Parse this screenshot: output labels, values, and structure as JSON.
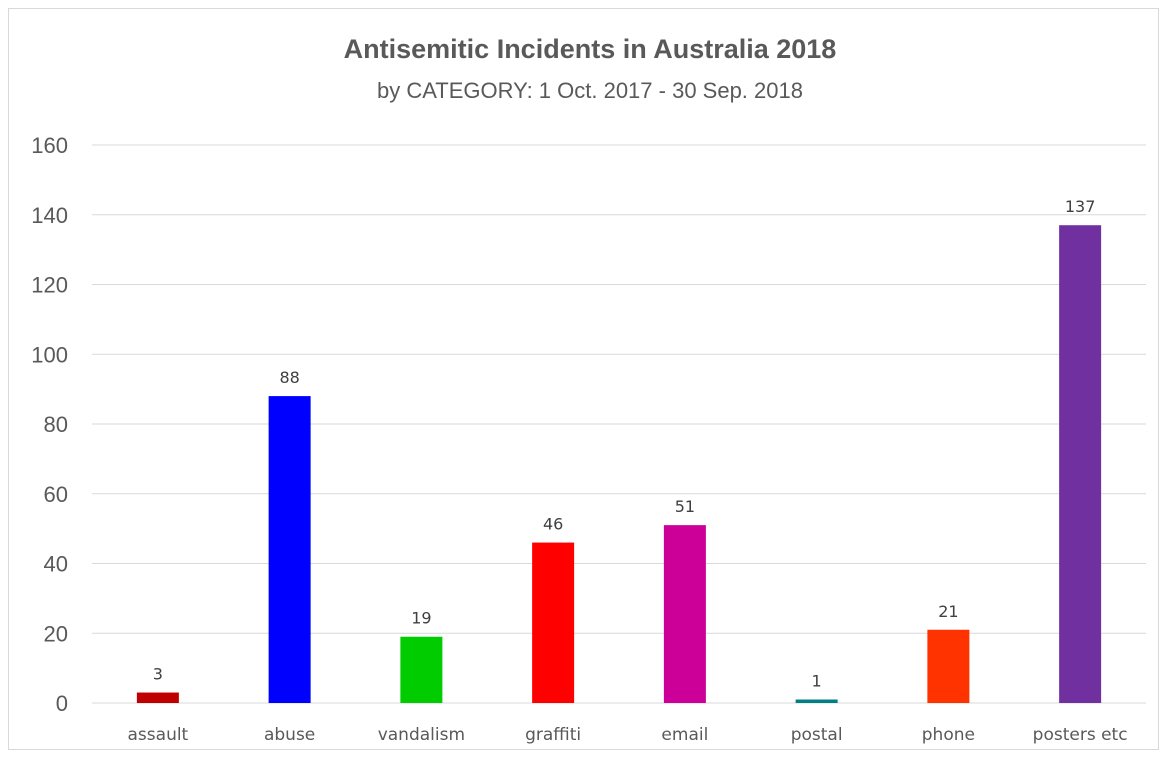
{
  "chart_data": {
    "type": "bar",
    "title": "Antisemitic Incidents in Australia 2018",
    "subtitle": "by CATEGORY: 1 Oct. 2017 - 30 Sep. 2018",
    "xlabel": "",
    "ylabel": "",
    "categories": [
      "assault",
      "abuse",
      "vandalism",
      "graffiti",
      "email",
      "postal",
      "phone",
      "posters etc"
    ],
    "values": [
      3,
      88,
      19,
      46,
      51,
      1,
      21,
      137
    ],
    "colors": [
      "#c00000",
      "#0000ff",
      "#00cc00",
      "#ff0000",
      "#cc0099",
      "#008080",
      "#ff3300",
      "#7030a0"
    ],
    "ylim": [
      0,
      160
    ],
    "yticks": [
      0,
      20,
      40,
      60,
      80,
      100,
      120,
      140,
      160
    ],
    "grid": true,
    "data_labels": true,
    "legend": "none"
  }
}
